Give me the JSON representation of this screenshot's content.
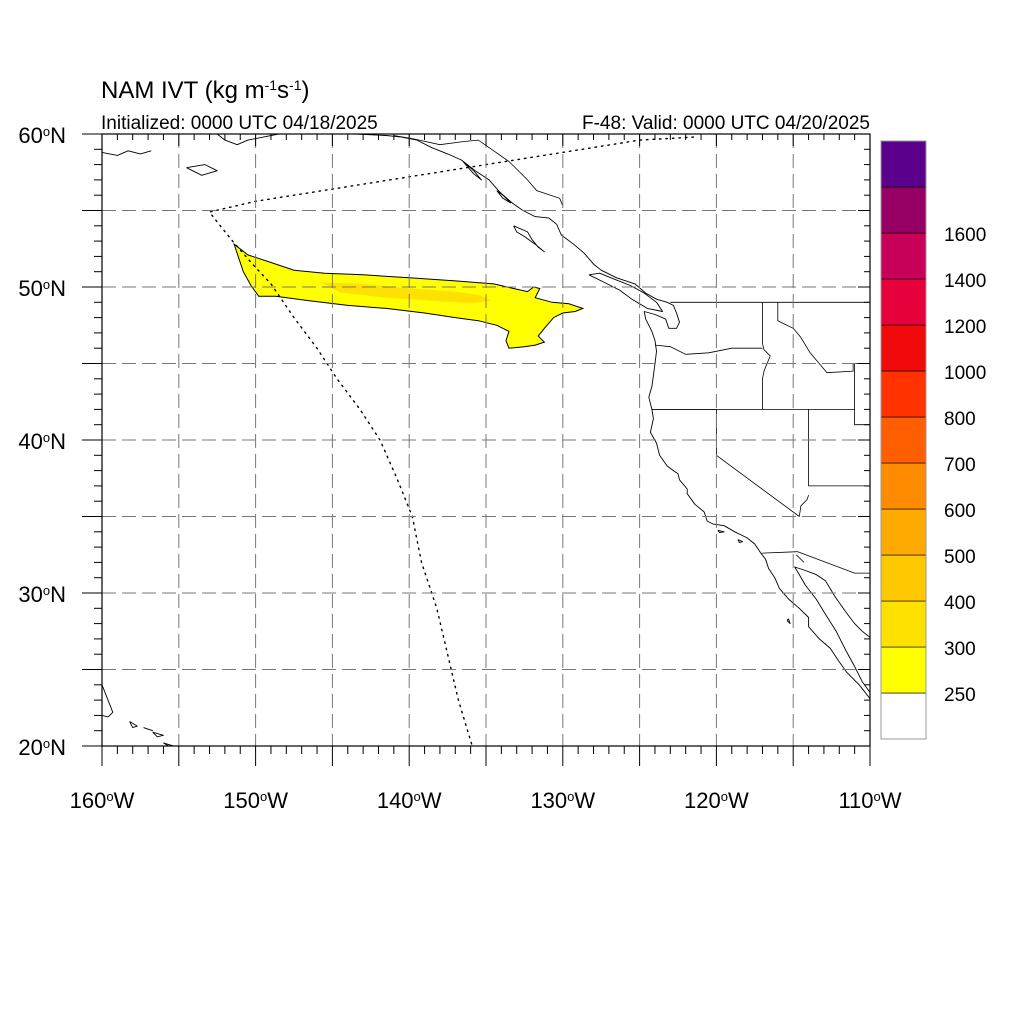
{
  "title": {
    "main": "NAM IVT (kg m",
    "sup1": "-1",
    "mid": "s",
    "sup2": "-1",
    "close": ")"
  },
  "initialized": "Initialized: 0000 UTC 04/18/2025",
  "valid": "F-48: Valid: 0000 UTC 04/20/2025",
  "map_extent": {
    "lon": [
      -160,
      -110
    ],
    "lat": [
      20,
      60
    ]
  },
  "lat_labels": [
    {
      "lat": 60,
      "num": "60",
      "deg": "o",
      "hem": "N"
    },
    {
      "lat": 50,
      "num": "50",
      "deg": "o",
      "hem": "N"
    },
    {
      "lat": 40,
      "num": "40",
      "deg": "o",
      "hem": "N"
    },
    {
      "lat": 30,
      "num": "30",
      "deg": "o",
      "hem": "N"
    },
    {
      "lat": 20,
      "num": "20",
      "deg": "o",
      "hem": "N"
    }
  ],
  "lon_labels": [
    {
      "lon": -160,
      "num": "160",
      "deg": "o",
      "hem": "W"
    },
    {
      "lon": -150,
      "num": "150",
      "deg": "o",
      "hem": "W"
    },
    {
      "lon": -140,
      "num": "140",
      "deg": "o",
      "hem": "W"
    },
    {
      "lon": -130,
      "num": "130",
      "deg": "o",
      "hem": "W"
    },
    {
      "lon": -120,
      "num": "120",
      "deg": "o",
      "hem": "W"
    },
    {
      "lon": -110,
      "num": "110",
      "deg": "o",
      "hem": "W"
    }
  ],
  "grid_lons": [
    -155,
    -150,
    -145,
    -140,
    -135,
    -130,
    -125,
    -120,
    -115
  ],
  "grid_lats": [
    25,
    30,
    35,
    40,
    45,
    50,
    55
  ],
  "colorbar": {
    "colors": [
      "#ffffff",
      "#ffff00",
      "#ffe100",
      "#ffc800",
      "#ffaa00",
      "#ff8c00",
      "#ff5f00",
      "#ff3200",
      "#f00a0a",
      "#e6003c",
      "#c8005a",
      "#960064",
      "#5a008c"
    ],
    "labels": [
      "250",
      "300",
      "400",
      "500",
      "600",
      "700",
      "800",
      "1000",
      "1200",
      "1400",
      "1600"
    ]
  },
  "ivt_plume": {
    "outer_color": "#ffff00",
    "inner_color": "#ffe100",
    "outer": [
      [
        -151.4,
        52.8
      ],
      [
        -150.5,
        52.1
      ],
      [
        -149,
        51.6
      ],
      [
        -147.5,
        51.1
      ],
      [
        -145.5,
        50.9
      ],
      [
        -143,
        50.8
      ],
      [
        -140,
        50.6
      ],
      [
        -137,
        50.4
      ],
      [
        -134.5,
        50.2
      ],
      [
        -133.2,
        49.9
      ],
      [
        -132.3,
        49.7
      ],
      [
        -131.9,
        50.0
      ],
      [
        -131.5,
        49.9
      ],
      [
        -131.8,
        49.3
      ],
      [
        -130.7,
        49.0
      ],
      [
        -129.6,
        48.9
      ],
      [
        -128.7,
        48.6
      ],
      [
        -129.2,
        48.4
      ],
      [
        -130.0,
        48.3
      ],
      [
        -130.6,
        48.0
      ],
      [
        -131.2,
        47.3
      ],
      [
        -131.6,
        46.8
      ],
      [
        -131.2,
        46.4
      ],
      [
        -131.8,
        46.2
      ],
      [
        -132.5,
        46.1
      ],
      [
        -133.5,
        46.0
      ],
      [
        -133.7,
        46.5
      ],
      [
        -133.5,
        47.1
      ],
      [
        -134.3,
        47.5
      ],
      [
        -135.5,
        47.8
      ],
      [
        -137,
        48.0
      ],
      [
        -139,
        48.3
      ],
      [
        -141.5,
        48.6
      ],
      [
        -144,
        48.8
      ],
      [
        -146.5,
        49.1
      ],
      [
        -148.7,
        49.4
      ],
      [
        -149.8,
        49.4
      ],
      [
        -150.3,
        50.1
      ],
      [
        -150.8,
        51.0
      ],
      [
        -151.4,
        52.8
      ]
    ],
    "inner": [
      [
        -145.8,
        50.3
      ],
      [
        -143,
        50.2
      ],
      [
        -140,
        49.9
      ],
      [
        -137,
        49.7
      ],
      [
        -135.5,
        49.5
      ],
      [
        -134.6,
        49.1
      ],
      [
        -136,
        48.95
      ],
      [
        -138.5,
        49.1
      ],
      [
        -141.5,
        49.3
      ],
      [
        -144.5,
        49.65
      ],
      [
        -145.8,
        50.3
      ]
    ]
  },
  "coastlines": [
    [
      [
        -152.5,
        60
      ],
      [
        -152,
        59.6
      ],
      [
        -151.2,
        59.3
      ],
      [
        -150.5,
        59.6
      ],
      [
        -149.5,
        59.8
      ],
      [
        -148.5,
        60.0
      ]
    ],
    [
      [
        -146.5,
        60.5
      ],
      [
        -145,
        60
      ],
      [
        -143.5,
        60
      ],
      [
        -141.5,
        59.9
      ],
      [
        -140.5,
        59.8
      ],
      [
        -139.5,
        59.6
      ],
      [
        -138.5,
        59.1
      ],
      [
        -137.5,
        58.7
      ],
      [
        -136.6,
        58.3
      ],
      [
        -135.7,
        57.6
      ],
      [
        -134.8,
        57.0
      ],
      [
        -134.1,
        56.2
      ],
      [
        -133.3,
        55.5
      ],
      [
        -132.6,
        55.0
      ],
      [
        -131.8,
        54.6
      ],
      [
        -130.9,
        54.5
      ],
      [
        -130.4,
        54.1
      ],
      [
        -130.1,
        53.4
      ],
      [
        -129.3,
        52.8
      ],
      [
        -128.6,
        52.2
      ],
      [
        -128.0,
        51.5
      ],
      [
        -127.5,
        51.1
      ],
      [
        -126.5,
        50.6
      ],
      [
        -125.3,
        50.2
      ],
      [
        -124.6,
        49.6
      ],
      [
        -123.9,
        49.2
      ],
      [
        -123.2,
        49.0
      ],
      [
        -122.8,
        48.8
      ],
      [
        -122.6,
        48.3
      ],
      [
        -122.4,
        47.7
      ],
      [
        -122.6,
        47.3
      ],
      [
        -123.1,
        47.3
      ],
      [
        -123.3,
        47.9
      ],
      [
        -124.0,
        48.2
      ],
      [
        -124.7,
        48.4
      ],
      [
        -124.6,
        47.9
      ],
      [
        -124.2,
        47.1
      ],
      [
        -124.0,
        46.5
      ],
      [
        -123.9,
        45.8
      ],
      [
        -124.0,
        45.0
      ],
      [
        -124.1,
        44.2
      ],
      [
        -124.2,
        43.5
      ],
      [
        -124.4,
        42.8
      ],
      [
        -124.2,
        42.0
      ],
      [
        -124.1,
        41.4
      ],
      [
        -124.3,
        40.5
      ],
      [
        -123.9,
        39.8
      ],
      [
        -123.7,
        39.0
      ],
      [
        -123.2,
        38.3
      ],
      [
        -122.8,
        38.0
      ],
      [
        -122.5,
        37.8
      ],
      [
        -122.4,
        37.4
      ],
      [
        -121.9,
        36.8
      ],
      [
        -121.9,
        36.5
      ],
      [
        -121.4,
        35.8
      ],
      [
        -120.8,
        35.3
      ],
      [
        -120.6,
        34.7
      ],
      [
        -120.2,
        34.5
      ],
      [
        -119.5,
        34.4
      ],
      [
        -118.8,
        34.0
      ],
      [
        -118.4,
        33.8
      ],
      [
        -118.0,
        33.6
      ],
      [
        -117.5,
        33.2
      ],
      [
        -117.1,
        32.6
      ],
      [
        -116.8,
        32.2
      ],
      [
        -116.6,
        31.6
      ],
      [
        -116.2,
        31.0
      ],
      [
        -115.9,
        30.3
      ],
      [
        -115.3,
        29.6
      ],
      [
        -114.6,
        29.0
      ],
      [
        -114.0,
        28.4
      ],
      [
        -114.0,
        27.8
      ],
      [
        -113.3,
        27.0
      ],
      [
        -112.6,
        26.4
      ],
      [
        -112.0,
        25.5
      ],
      [
        -111.5,
        24.8
      ],
      [
        -110.7,
        24.0
      ],
      [
        -110.0,
        23.1
      ]
    ],
    [
      [
        -110.0,
        23.5
      ],
      [
        -110.5,
        24.2
      ],
      [
        -111.0,
        25.2
      ],
      [
        -111.6,
        26.3
      ],
      [
        -112.2,
        27.5
      ],
      [
        -112.9,
        28.6
      ],
      [
        -113.5,
        29.6
      ],
      [
        -114.2,
        30.5
      ],
      [
        -114.6,
        31.2
      ],
      [
        -114.9,
        31.7
      ],
      [
        -114.3,
        31.5
      ],
      [
        -113.5,
        31.2
      ],
      [
        -112.9,
        30.8
      ],
      [
        -112.3,
        29.8
      ],
      [
        -111.6,
        28.8
      ],
      [
        -111.0,
        28.0
      ],
      [
        -110.5,
        27.5
      ],
      [
        -110.0,
        27.1
      ]
    ],
    [
      [
        -133.2,
        54.0
      ],
      [
        -132.3,
        53.6
      ],
      [
        -132.0,
        53.1
      ],
      [
        -131.6,
        52.6
      ],
      [
        -131.2,
        52.3
      ],
      [
        -131.8,
        52.8
      ],
      [
        -132.5,
        53.3
      ],
      [
        -133.0,
        53.6
      ],
      [
        -133.2,
        54.0
      ]
    ],
    [
      [
        -128.3,
        50.8
      ],
      [
        -127.3,
        50.3
      ],
      [
        -126.3,
        49.8
      ],
      [
        -125.5,
        49.2
      ],
      [
        -124.5,
        48.6
      ],
      [
        -123.5,
        48.4
      ],
      [
        -123.9,
        49.0
      ],
      [
        -124.7,
        49.6
      ],
      [
        -125.6,
        50.1
      ],
      [
        -126.6,
        50.5
      ],
      [
        -127.6,
        50.9
      ],
      [
        -128.3,
        50.8
      ]
    ],
    [
      [
        -136.5,
        58.2
      ],
      [
        -135.8,
        57.6
      ],
      [
        -135.3,
        57.0
      ],
      [
        -135.8,
        57.4
      ],
      [
        -136.5,
        58.2
      ]
    ],
    [
      [
        -134.3,
        56.3
      ],
      [
        -133.9,
        55.8
      ],
      [
        -133.4,
        55.5
      ],
      [
        -133.9,
        56.0
      ],
      [
        -134.3,
        56.3
      ]
    ],
    [
      [
        -160.0,
        58.8
      ],
      [
        -159.0,
        58.6
      ],
      [
        -158.3,
        58.9
      ],
      [
        -157.5,
        58.7
      ],
      [
        -156.8,
        58.9
      ]
    ],
    [
      [
        -154.5,
        57.8
      ],
      [
        -153.5,
        57.3
      ],
      [
        -152.5,
        57.6
      ],
      [
        -153.3,
        58.0
      ],
      [
        -154.5,
        57.8
      ]
    ],
    [
      [
        -160,
        24.0
      ],
      [
        -159.3,
        22.2
      ],
      [
        -159.6,
        21.9
      ],
      [
        -160.0,
        22.0
      ]
    ],
    [
      [
        -158.2,
        21.6
      ],
      [
        -157.7,
        21.3
      ],
      [
        -158.0,
        21.2
      ],
      [
        -158.2,
        21.6
      ]
    ],
    [
      [
        -157.3,
        21.2
      ],
      [
        -156.7,
        21.0
      ],
      [
        -157.0,
        21.1
      ],
      [
        -157.3,
        21.2
      ]
    ],
    [
      [
        -156.7,
        20.9
      ],
      [
        -156.0,
        20.7
      ],
      [
        -156.4,
        20.6
      ],
      [
        -156.7,
        20.9
      ]
    ],
    [
      [
        -156.0,
        20.2
      ],
      [
        -155.0,
        19.9
      ],
      [
        -154.9,
        19.6
      ],
      [
        -155.5,
        19.9
      ],
      [
        -156.0,
        20.2
      ]
    ],
    [
      [
        -119.9,
        34.1
      ],
      [
        -119.5,
        34.0
      ],
      [
        -119.8,
        33.95
      ],
      [
        -119.9,
        34.1
      ]
    ],
    [
      [
        -118.6,
        33.5
      ],
      [
        -118.3,
        33.35
      ],
      [
        -118.5,
        33.3
      ],
      [
        -118.6,
        33.5
      ]
    ],
    [
      [
        -115.4,
        28.2
      ],
      [
        -115.2,
        28.0
      ],
      [
        -115.3,
        28.3
      ],
      [
        -115.4,
        28.2
      ]
    ]
  ],
  "borders": [
    [
      [
        -141.0,
        60.0
      ],
      [
        -141.0,
        60.3
      ]
    ],
    [
      [
        -141.0,
        59.9
      ],
      [
        -139.8,
        59.7
      ],
      [
        -138.0,
        59.3
      ],
      [
        -136.5,
        59.5
      ],
      [
        -135.5,
        59.6
      ],
      [
        -134.5,
        58.9
      ],
      [
        -133.5,
        58.2
      ],
      [
        -132.3,
        57.0
      ],
      [
        -131.7,
        56.3
      ],
      [
        -130.2,
        55.8
      ],
      [
        -130.0,
        55.3
      ]
    ],
    [
      [
        -123.0,
        49.0
      ],
      [
        -110.0,
        49.0
      ]
    ],
    [
      [
        -124.2,
        42.0
      ],
      [
        -111.0,
        42.0
      ]
    ],
    [
      [
        -120.0,
        42.0
      ],
      [
        -120.0,
        39.0
      ],
      [
        -114.6,
        35.0
      ]
    ],
    [
      [
        -114.7,
        32.7
      ],
      [
        -117.1,
        32.6
      ]
    ],
    [
      [
        -114.7,
        32.7
      ],
      [
        -111.0,
        31.3
      ],
      [
        -110.0,
        31.3
      ]
    ],
    [
      [
        -117.0,
        49.0
      ],
      [
        -117.0,
        46.3
      ],
      [
        -116.9,
        45.9
      ],
      [
        -116.5,
        45.5
      ],
      [
        -116.9,
        44.5
      ],
      [
        -117.0,
        44.0
      ],
      [
        -117.0,
        42.0
      ]
    ],
    [
      [
        -116.0,
        49.0
      ],
      [
        -116.0,
        47.8
      ],
      [
        -115.0,
        47.3
      ],
      [
        -114.5,
        46.7
      ],
      [
        -113.9,
        45.7
      ],
      [
        -112.8,
        44.4
      ],
      [
        -111.1,
        44.5
      ],
      [
        -111.1,
        45.0
      ],
      [
        -110.0,
        45.0
      ]
    ],
    [
      [
        -111.0,
        45.0
      ],
      [
        -111.0,
        41.0
      ],
      [
        -110,
        41.0
      ]
    ],
    [
      [
        -114.0,
        42.0
      ],
      [
        -114.0,
        37.0
      ],
      [
        -110.0,
        37.0
      ]
    ],
    [
      [
        -124.0,
        46.2
      ],
      [
        -123.0,
        46.1
      ],
      [
        -122.0,
        45.6
      ],
      [
        -120.5,
        45.7
      ],
      [
        -119.0,
        46.0
      ],
      [
        -117.0,
        46.0
      ]
    ],
    [
      [
        -114.6,
        35.0
      ],
      [
        -114.5,
        35.7
      ],
      [
        -114.1,
        36.1
      ],
      [
        -114.0,
        36.4
      ]
    ],
    [
      [
        -114.3,
        32.0
      ],
      [
        -114.8,
        32.5
      ]
    ],
    [
      [
        -124.2,
        42.0
      ],
      [
        -120.0,
        42.0
      ]
    ]
  ],
  "dotted_boundary": [
    [
      [
        -121.5,
        59.8
      ],
      [
        -125,
        59.6
      ],
      [
        -130,
        58.8
      ],
      [
        -135,
        58.0
      ],
      [
        -140,
        57.2
      ],
      [
        -145,
        56.4
      ],
      [
        -150,
        55.6
      ],
      [
        -153,
        54.9
      ],
      [
        -152.7,
        54.5
      ],
      [
        -151.5,
        53.0
      ],
      [
        -150.2,
        51.5
      ],
      [
        -149.0,
        50.2
      ],
      [
        -147.5,
        48.0
      ],
      [
        -146.0,
        46.0
      ],
      [
        -144.7,
        44.0
      ],
      [
        -143.2,
        42.0
      ],
      [
        -141.9,
        40.0
      ],
      [
        -140.8,
        37.5
      ],
      [
        -139.8,
        35.0
      ],
      [
        -139.2,
        32.0
      ],
      [
        -138.2,
        29.0
      ],
      [
        -137.5,
        26.0
      ],
      [
        -136.8,
        23.0
      ],
      [
        -135.9,
        20.0
      ]
    ]
  ]
}
